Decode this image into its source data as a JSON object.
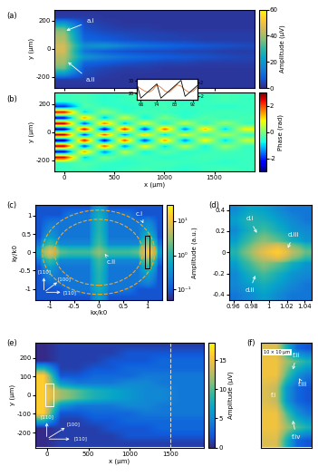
{
  "chart_data": [
    {
      "type": "heatmap",
      "panel": "(a)",
      "ylabel": "y (μm)",
      "xlim": [
        -100,
        1900
      ],
      "ylim": [
        -280,
        280
      ],
      "xticks": [
        0,
        500,
        1000,
        1500
      ],
      "yticks": [
        -200,
        0,
        200
      ],
      "tick_labels": "y",
      "colormap": "amplitude",
      "annotations": [
        "a.i",
        "a.ii"
      ],
      "cells": [
        [
          2,
          2,
          2,
          2,
          2,
          2,
          2,
          2,
          2,
          2
        ],
        [
          3,
          3,
          2,
          2,
          2,
          2,
          2,
          2,
          2,
          2
        ],
        [
          20,
          5,
          3,
          2,
          2,
          2,
          2,
          2,
          2,
          2
        ],
        [
          35,
          6,
          4,
          3,
          3,
          2,
          2,
          2,
          2,
          2
        ],
        [
          40,
          10,
          8,
          6,
          5,
          4,
          4,
          3,
          3,
          3
        ],
        [
          42,
          20,
          15,
          12,
          10,
          8,
          7,
          6,
          5,
          4
        ],
        [
          45,
          12,
          8,
          6,
          5,
          5,
          4,
          4,
          3,
          3
        ],
        [
          45,
          18,
          20,
          15,
          12,
          10,
          8,
          7,
          6,
          5
        ],
        [
          42,
          10,
          8,
          6,
          5,
          4,
          4,
          3,
          3,
          3
        ],
        [
          40,
          8,
          6,
          5,
          4,
          4,
          3,
          3,
          3,
          3
        ],
        [
          35,
          6,
          4,
          3,
          3,
          2,
          2,
          2,
          2,
          2
        ],
        [
          20,
          5,
          3,
          2,
          2,
          2,
          2,
          2,
          2,
          2
        ],
        [
          3,
          3,
          2,
          2,
          2,
          2,
          2,
          2,
          2,
          2
        ],
        [
          2,
          2,
          2,
          2,
          2,
          2,
          2,
          2,
          2,
          2
        ]
      ],
      "colorbar": {
        "label": "Amplitude (μV)",
        "range": [
          0,
          60
        ],
        "ticks": [
          0,
          20,
          40,
          60
        ]
      }
    },
    {
      "type": "heatmap",
      "panel": "(b)",
      "ylabel": "y (μm)",
      "xlabel": "x (μm)",
      "xlim": [
        -100,
        1900
      ],
      "ylim": [
        -280,
        280
      ],
      "xticks": [
        0,
        500,
        1000,
        1500
      ],
      "yticks": [
        -200,
        0,
        200
      ],
      "colormap": "phase",
      "cells": [
        [
          -0.5,
          -0.4,
          -0.6,
          -0.5,
          -0.4,
          -0.5,
          -0.6,
          -0.5,
          -0.4,
          -0.5
        ],
        [
          -0.5,
          -0.3,
          -0.5,
          -0.6,
          -0.5,
          -0.4,
          -0.5,
          -0.5,
          -0.6,
          -0.5
        ],
        [
          2.5,
          -1,
          0,
          -0.5,
          -0.4,
          -0.6,
          -0.5,
          -0.4,
          -0.5,
          -0.5
        ],
        [
          -2.5,
          1.5,
          -1.5,
          0.5,
          -0.8,
          -0.2,
          -0.6,
          -0.5,
          -0.4,
          -0.5
        ],
        [
          2.8,
          -2,
          2,
          -1.5,
          1,
          -1,
          0.5,
          -0.8,
          0.2,
          -0.5
        ],
        [
          -2.8,
          2.5,
          -2.5,
          2,
          -2,
          1.5,
          -1.5,
          1,
          -1,
          0.5
        ],
        [
          2.8,
          -2,
          2,
          -1.5,
          1.2,
          -1,
          0.8,
          -0.6,
          0.4,
          -0.5
        ],
        [
          -2.8,
          2.5,
          -2.5,
          2.2,
          -2,
          1.8,
          -1.5,
          1.2,
          -1,
          0.8
        ],
        [
          2.8,
          -2,
          1.8,
          -1.2,
          0.8,
          -0.8,
          0.5,
          -0.6,
          0.2,
          -0.5
        ],
        [
          -2.5,
          1.5,
          -1.2,
          0.6,
          -0.8,
          0,
          -0.6,
          -0.3,
          -0.5,
          -0.4
        ],
        [
          2.5,
          -1,
          0.2,
          -0.6,
          -0.4,
          -0.5,
          -0.6,
          -0.5,
          -0.4,
          -0.5
        ],
        [
          -2,
          -0.3,
          -0.5,
          -0.6,
          -0.5,
          -0.4,
          -0.5,
          -0.5,
          -0.6,
          -0.5
        ],
        [
          -0.5,
          -0.4,
          -0.6,
          -0.5,
          -0.4,
          -0.5,
          -0.6,
          -0.5,
          -0.4,
          -0.5
        ],
        [
          -0.5,
          -0.4,
          -0.6,
          -0.5,
          -0.4,
          -0.5,
          -0.6,
          -0.5,
          -0.4,
          -0.5
        ]
      ],
      "colorbar": {
        "label": "Phase (rad)",
        "range": [
          -3,
          3
        ],
        "ticks": [
          -2,
          0,
          2
        ]
      }
    },
    {
      "type": "line",
      "x": [
        64,
        66,
        68,
        70,
        72,
        74,
        76,
        78,
        80,
        82,
        84,
        86,
        88,
        90,
        92,
        94
      ],
      "xlim": [
        64,
        94
      ],
      "xticks": [
        66,
        74,
        83,
        92
      ],
      "ylim": [
        15,
        32
      ],
      "yticks": [
        20,
        30
      ],
      "y2lim": [
        -3,
        3
      ],
      "y2ticks": [
        -2,
        2
      ],
      "series": [
        {
          "color": "#e07b39",
          "values": [
            26,
            24,
            22,
            21,
            23,
            27,
            25,
            22,
            21,
            24,
            27,
            26,
            23,
            21,
            22,
            25
          ]
        },
        {
          "color": "#000000",
          "axis": "y2",
          "values": [
            1.5,
            -2.5,
            -1.5,
            -0.5,
            0.5,
            1.5,
            -2.5,
            -1.5,
            -0.5,
            0.5,
            1.5,
            2.5,
            -2,
            -1,
            0,
            1
          ]
        }
      ]
    },
    {
      "type": "heatmap",
      "panel": "(c)",
      "xlabel": "kx/k0",
      "ylabel": "ky/k0",
      "xlim": [
        -1.3,
        1.3
      ],
      "ylim": [
        -1.3,
        1.3
      ],
      "xticks": [
        -1,
        -0.5,
        0,
        0.5,
        1
      ],
      "yticks": [
        -1,
        -0.5,
        0,
        0.5,
        1
      ],
      "colormap": "amplitude",
      "log": true,
      "annotations": [
        "c.i",
        "c.ii"
      ],
      "directions": [
        "[110]",
        "[100]",
        "[1̄10]"
      ],
      "circles": {
        "radii": [
          0.9,
          1.15
        ],
        "color": "#f5a623",
        "line_style": "dashed"
      },
      "cells": [
        [
          0.1,
          0.1,
          0.1,
          0.1,
          0.1,
          0.1,
          0.5,
          0.1,
          0.1,
          0.1,
          0.1,
          0.1,
          0.1
        ],
        [
          0.1,
          0.1,
          0.1,
          0.2,
          0.2,
          0.2,
          0.8,
          0.2,
          0.2,
          0.2,
          0.1,
          0.1,
          0.1
        ],
        [
          0.1,
          0.2,
          0.2,
          0.2,
          0.2,
          0.2,
          1,
          0.2,
          0.2,
          0.2,
          0.2,
          0.3,
          0.1
        ],
        [
          0.1,
          0.3,
          0.2,
          0.2,
          0.2,
          0.2,
          1,
          0.2,
          0.2,
          0.2,
          0.2,
          0.5,
          0.1
        ],
        [
          0.1,
          0.5,
          0.2,
          0.2,
          0.2,
          0.2,
          1.2,
          0.2,
          0.2,
          0.2,
          0.2,
          1,
          0.1
        ],
        [
          0.2,
          1.5,
          0.3,
          0.3,
          0.3,
          0.3,
          1.5,
          0.3,
          0.3,
          0.3,
          0.3,
          3,
          0.2
        ],
        [
          0.5,
          8,
          2,
          1.5,
          1.5,
          1.5,
          3,
          1.5,
          1.5,
          1.5,
          2,
          12,
          0.5
        ],
        [
          0.2,
          1.5,
          0.3,
          0.3,
          0.3,
          0.3,
          1.5,
          0.3,
          0.3,
          0.3,
          0.3,
          3,
          0.2
        ],
        [
          0.1,
          0.5,
          0.2,
          0.2,
          0.2,
          0.2,
          1.2,
          0.2,
          0.2,
          0.2,
          0.2,
          1,
          0.1
        ],
        [
          0.1,
          0.3,
          0.2,
          0.2,
          0.2,
          0.2,
          1,
          0.2,
          0.2,
          0.2,
          0.2,
          0.5,
          0.1
        ],
        [
          0.1,
          0.2,
          0.2,
          0.2,
          0.2,
          0.2,
          1,
          0.2,
          0.2,
          0.2,
          0.2,
          0.3,
          0.1
        ],
        [
          0.1,
          0.1,
          0.1,
          0.2,
          0.2,
          0.2,
          0.8,
          0.2,
          0.2,
          0.2,
          0.1,
          0.1,
          0.1
        ],
        [
          0.1,
          0.1,
          0.1,
          0.1,
          0.1,
          0.1,
          0.5,
          0.1,
          0.1,
          0.1,
          0.1,
          0.1,
          0.1
        ]
      ],
      "colorbar": {
        "label": "Amplitude (a.u.)",
        "range": [
          0.05,
          30
        ],
        "ticks": [
          {
            "value": 0.1,
            "label": "10⁻¹"
          },
          {
            "value": 1,
            "label": "10⁰"
          },
          {
            "value": 10,
            "label": "10¹"
          }
        ]
      }
    },
    {
      "type": "heatmap",
      "panel": "(d)",
      "xlim": [
        0.955,
        1.048
      ],
      "ylim": [
        -0.45,
        0.45
      ],
      "xticks": [
        0.96,
        0.98,
        1,
        1.02,
        1.04
      ],
      "yticks": [
        -0.4,
        -0.2,
        0,
        0.2,
        0.4
      ],
      "colormap": "amplitude",
      "log": true,
      "annotations": [
        "d.i",
        "d.ii",
        "d.iii"
      ],
      "cells": [
        [
          0.2,
          0.3,
          0.5,
          0.3,
          0.2,
          0.2
        ],
        [
          0.3,
          0.5,
          0.8,
          0.5,
          0.3,
          0.2
        ],
        [
          0.3,
          0.8,
          1.5,
          0.8,
          0.4,
          0.3
        ],
        [
          0.5,
          1.5,
          3,
          2,
          0.8,
          0.4
        ],
        [
          1,
          3,
          8,
          15,
          5,
          2
        ],
        [
          0.5,
          1.5,
          3,
          2,
          0.8,
          0.4
        ],
        [
          0.3,
          0.8,
          1.5,
          0.8,
          0.4,
          0.3
        ],
        [
          0.5,
          1,
          0.8,
          0.5,
          0.3,
          0.2
        ],
        [
          0.3,
          0.6,
          0.5,
          0.3,
          0.2,
          0.2
        ]
      ],
      "colorbar": {
        "range": [
          0.05,
          30
        ]
      }
    },
    {
      "type": "heatmap",
      "panel": "(e)",
      "xlabel": "x (μm)",
      "ylabel": "y (μm)",
      "xlim": [
        -150,
        1900
      ],
      "ylim": [
        -280,
        280
      ],
      "xticks": [
        0,
        500,
        1000,
        1500
      ],
      "yticks": [
        -200,
        -100,
        0,
        100,
        200
      ],
      "colormap": "amplitude",
      "directions": [
        "[110]",
        "[100]",
        "[1̄10]"
      ],
      "vline": {
        "x": 1500,
        "color": "#d9d9d9",
        "line_style": "dashed"
      },
      "cells": [
        [
          0,
          1,
          1,
          1,
          1,
          1,
          1,
          1,
          1,
          1
        ],
        [
          0,
          1,
          1,
          1,
          1,
          2,
          2,
          2,
          2,
          2
        ],
        [
          0,
          1,
          1,
          1,
          2,
          2,
          2,
          3,
          3,
          3
        ],
        [
          8,
          1,
          1,
          2,
          2,
          3,
          3,
          3,
          3,
          3
        ],
        [
          16,
          2,
          2,
          3,
          3,
          3,
          4,
          4,
          4,
          4
        ],
        [
          16,
          6,
          4,
          4,
          4,
          5,
          5,
          4,
          4,
          4
        ],
        [
          16,
          12,
          10,
          8,
          7,
          6,
          5,
          5,
          4,
          4
        ],
        [
          16,
          12,
          10,
          8,
          7,
          6,
          5,
          5,
          4,
          4
        ],
        [
          16,
          6,
          4,
          4,
          4,
          5,
          5,
          4,
          4,
          4
        ],
        [
          16,
          2,
          2,
          3,
          3,
          3,
          4,
          4,
          4,
          4
        ],
        [
          8,
          1,
          1,
          2,
          2,
          3,
          3,
          3,
          3,
          3
        ],
        [
          0,
          1,
          1,
          1,
          2,
          2,
          2,
          3,
          3,
          3
        ],
        [
          0,
          1,
          1,
          1,
          1,
          2,
          2,
          2,
          2,
          2
        ],
        [
          0,
          1,
          1,
          1,
          1,
          1,
          1,
          1,
          1,
          1
        ]
      ],
      "colorbar": {
        "label": "Amplitude (μV)",
        "range": [
          0,
          18
        ],
        "ticks": [
          0,
          5,
          10,
          15
        ]
      }
    },
    {
      "type": "heatmap",
      "panel": "(f)",
      "xlim": [
        -20,
        80
      ],
      "ylim": [
        -60,
        60
      ],
      "tick_labels": false,
      "colormap": "amplitude",
      "annotations": [
        "f.i",
        "f.ii",
        "f.iii",
        "f.iv"
      ],
      "scale_note": "10 × 10 μm",
      "cells": [
        [
          14,
          14,
          8,
          3,
          2
        ],
        [
          15,
          15,
          12,
          10,
          8
        ],
        [
          15,
          15,
          10,
          6,
          4
        ],
        [
          14,
          13,
          6,
          3,
          2
        ],
        [
          14,
          13,
          6,
          3,
          2
        ],
        [
          15,
          15,
          10,
          6,
          4
        ],
        [
          15,
          15,
          12,
          10,
          8
        ],
        [
          14,
          14,
          8,
          3,
          2
        ]
      ],
      "colorbar": {
        "range": [
          0,
          18
        ]
      }
    }
  ]
}
